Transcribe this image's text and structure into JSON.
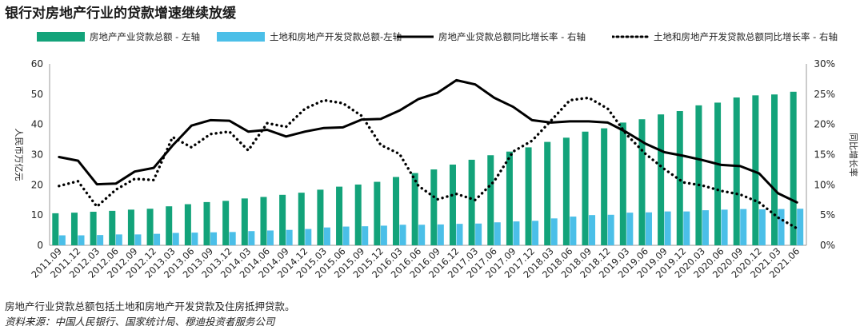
{
  "title": "银行对房地产行业的贷款增速继续放缓",
  "footnote": "房地产行业贷款总额包括土地和房地产开发贷款及住房抵押贷款。",
  "source": "资料来源：中国人民银行、国家统计局、穆迪投资者服务公司",
  "colors": {
    "green": "#13a37a",
    "blue": "#4bbfe8",
    "line": "#000000"
  },
  "chart_data": {
    "type": "bar",
    "categories": [
      "2011.09",
      "2011.12",
      "2012.03",
      "2012.06",
      "2012.09",
      "2012.12",
      "2013.03",
      "2013.06",
      "2013.09",
      "2013.12",
      "2014.03",
      "2014.06",
      "2014.09",
      "2014.12",
      "2015.03",
      "2015.06",
      "2015.09",
      "2015.12",
      "2016.03",
      "2016.06",
      "2016.09",
      "2016.12",
      "2017.03",
      "2017.06",
      "2017.09",
      "2017.12",
      "2018.03",
      "2018.06",
      "2018.09",
      "2018.12",
      "2019.03",
      "2019.06",
      "2019.09",
      "2019.12",
      "2020.03",
      "2020.06",
      "2020.09",
      "2020.12",
      "2021.03",
      "2021.06"
    ],
    "ylabel": "人民币万亿元",
    "y2label": "同比增长率",
    "ylim": [
      0,
      60
    ],
    "y2lim": [
      0,
      30
    ],
    "yticks": [
      "0",
      "10",
      "20",
      "30",
      "40",
      "50",
      "60"
    ],
    "y2ticks": [
      "0%",
      "5%",
      "10%",
      "15%",
      "20%",
      "25%",
      "30%"
    ],
    "series": [
      {
        "name": "房地产产业贷款总额 - 左轴",
        "kind": "bar",
        "axis": "left",
        "color": "#13a37a",
        "values": [
          10.6,
          10.8,
          11.1,
          11.4,
          11.8,
          12.1,
          12.9,
          13.6,
          14.3,
          14.7,
          15.5,
          16.0,
          16.7,
          17.4,
          18.4,
          19.4,
          20.1,
          21.0,
          22.6,
          23.9,
          25.1,
          26.7,
          28.3,
          29.8,
          31.0,
          32.4,
          34.2,
          35.6,
          37.6,
          38.7,
          40.6,
          41.7,
          43.3,
          44.4,
          46.3,
          47.2,
          48.9,
          49.6,
          49.9,
          50.8
        ]
      },
      {
        "name": "土地和房地产开发贷款总额-左轴",
        "kind": "bar",
        "axis": "left",
        "color": "#4bbfe8",
        "values": [
          3.3,
          3.3,
          3.4,
          3.6,
          3.6,
          3.8,
          4.1,
          4.2,
          4.3,
          4.4,
          4.7,
          4.9,
          5.1,
          5.4,
          5.9,
          6.2,
          6.3,
          6.5,
          6.8,
          6.8,
          6.9,
          7.1,
          7.2,
          7.6,
          7.9,
          8.1,
          8.9,
          9.5,
          10.0,
          10.1,
          10.8,
          10.9,
          11.2,
          11.2,
          11.6,
          11.8,
          12.0,
          11.9,
          12.0,
          12.1
        ]
      },
      {
        "name": "房地产业贷款总额同比增长率 - 右轴",
        "kind": "line",
        "axis": "right",
        "style": "solid",
        "color": "#000000",
        "values": [
          14.6,
          14.0,
          10.1,
          10.2,
          12.2,
          12.8,
          16.5,
          19.8,
          20.7,
          20.6,
          18.8,
          19.1,
          18.0,
          18.8,
          19.4,
          19.5,
          20.8,
          20.9,
          22.3,
          24.2,
          25.2,
          27.3,
          26.6,
          24.4,
          22.9,
          20.7,
          20.3,
          20.5,
          20.5,
          20.3,
          18.7,
          16.8,
          15.4,
          14.8,
          14.1,
          13.3,
          13.1,
          11.9,
          8.6,
          7.1
        ]
      },
      {
        "name": "土地和房地产开发贷款总额同比增长率 - 右轴",
        "kind": "line",
        "axis": "right",
        "style": "dotted",
        "color": "#000000",
        "values": [
          9.8,
          10.6,
          6.4,
          9.2,
          11.0,
          10.8,
          17.9,
          16.2,
          18.4,
          18.8,
          15.7,
          20.2,
          19.6,
          22.6,
          24.0,
          23.5,
          21.4,
          16.6,
          15.1,
          9.8,
          7.6,
          8.5,
          7.5,
          10.6,
          15.5,
          17.3,
          20.6,
          24.0,
          24.4,
          22.6,
          18.3,
          15.1,
          12.6,
          10.4,
          9.9,
          9.0,
          8.4,
          7.1,
          4.6,
          2.8
        ]
      }
    ]
  }
}
